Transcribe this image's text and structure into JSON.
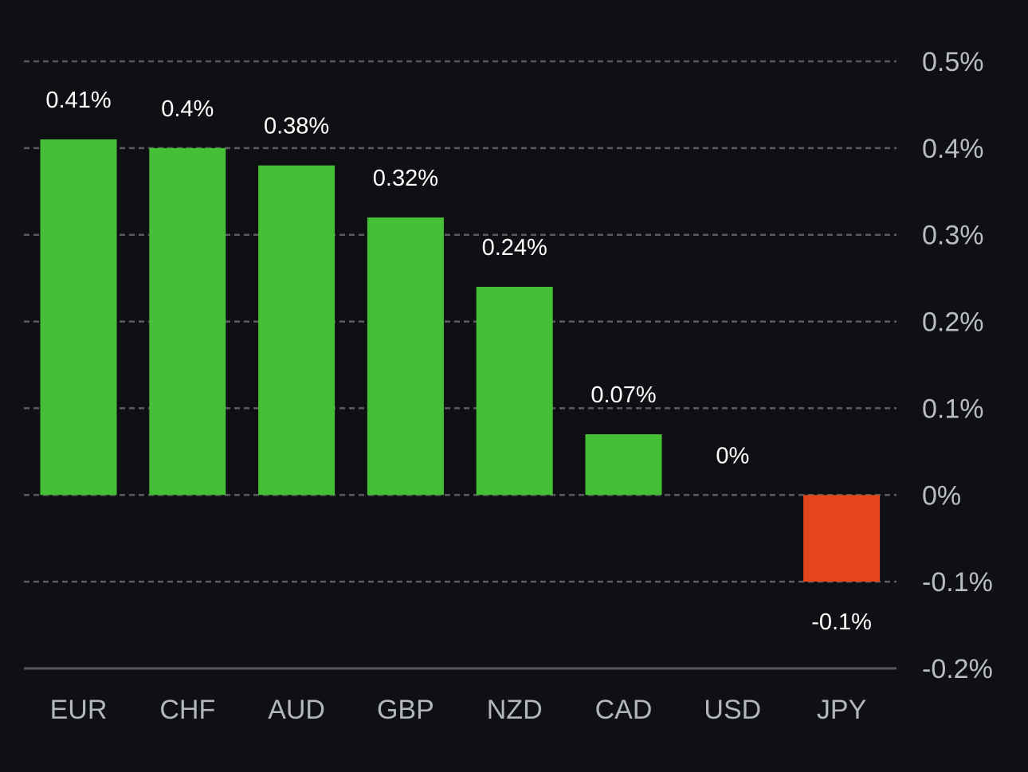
{
  "chart_data": {
    "type": "bar",
    "title": "",
    "xlabel": "",
    "ylabel": "",
    "categories": [
      "EUR",
      "CHF",
      "AUD",
      "GBP",
      "NZD",
      "CAD",
      "USD",
      "JPY"
    ],
    "values": [
      0.41,
      0.4,
      0.38,
      0.32,
      0.24,
      0.07,
      0,
      -0.1
    ],
    "data_labels": [
      "0.41%",
      "0.4%",
      "0.38%",
      "0.32%",
      "0.24%",
      "0.07%",
      "0%",
      "-0.1%"
    ],
    "ylim": [
      -0.2,
      0.5
    ],
    "y_ticks": [
      0.5,
      0.4,
      0.3,
      0.2,
      0.1,
      0,
      -0.1,
      -0.2
    ],
    "y_tick_labels": [
      "0.5%",
      "0.4%",
      "0.3%",
      "0.2%",
      "0.1%",
      "0%",
      "-0.1%",
      "-0.2%"
    ],
    "y_axis_position": "right",
    "grid": true,
    "legend": "none",
    "colors": {
      "positive": "#45bf35",
      "negative": "#e5461d",
      "background": "#0f1013",
      "grid": "#5a5c61"
    }
  }
}
